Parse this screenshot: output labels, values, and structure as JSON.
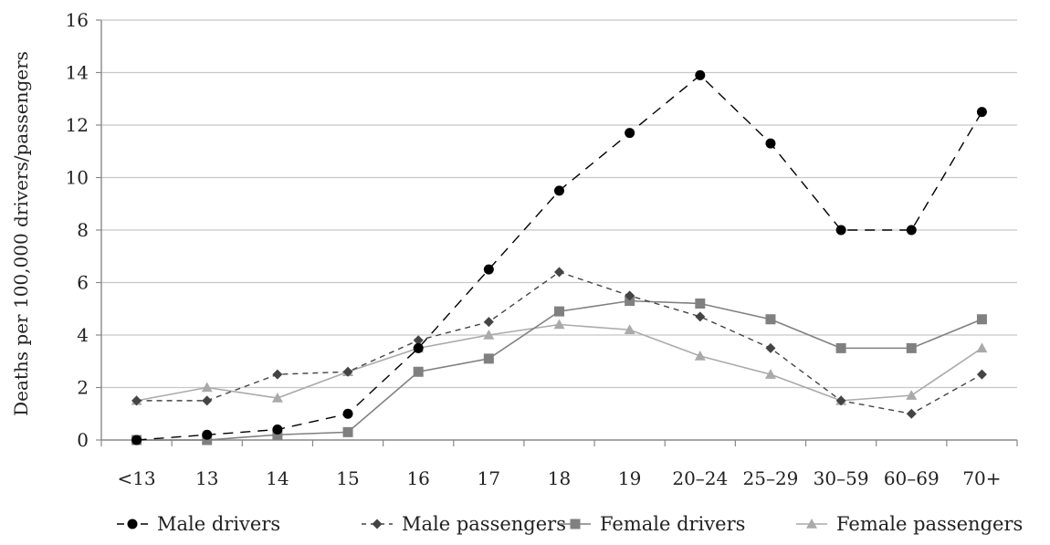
{
  "chart_data": {
    "type": "line",
    "title": "",
    "xlabel": "",
    "ylabel": "Deaths per 100,000 drivers/passengers",
    "ylim": [
      0,
      16
    ],
    "yticks": [
      "0",
      "2",
      "4",
      "6",
      "8",
      "10",
      "12",
      "14",
      "16"
    ],
    "categories": [
      "<13",
      "13",
      "14",
      "15",
      "16",
      "17",
      "18",
      "19",
      "20–24",
      "25–29",
      "30–59",
      "60–69",
      "70+"
    ],
    "grid": "horizontal",
    "legend_position": "bottom",
    "series": [
      {
        "name": "Male drivers",
        "marker": "circle",
        "line": "long-dash",
        "color": "#000000",
        "values": [
          0.0,
          0.2,
          0.4,
          1.0,
          3.5,
          6.5,
          9.5,
          11.7,
          13.9,
          11.3,
          8.0,
          8.0,
          12.5
        ]
      },
      {
        "name": "Male passengers",
        "marker": "diamond",
        "line": "short-dash",
        "color": "#444444",
        "values": [
          1.5,
          1.5,
          2.5,
          2.6,
          3.8,
          4.5,
          6.4,
          5.5,
          4.7,
          3.5,
          1.5,
          1.0,
          2.5
        ]
      },
      {
        "name": "Female drivers",
        "marker": "square",
        "line": "solid",
        "color": "#808080",
        "values": [
          0.0,
          0.0,
          0.2,
          0.3,
          2.6,
          3.1,
          4.9,
          5.3,
          5.2,
          4.6,
          3.5,
          3.5,
          4.6
        ]
      },
      {
        "name": "Female passengers",
        "marker": "triangle",
        "line": "solid",
        "color": "#aaaaaa",
        "values": [
          1.5,
          2.0,
          1.6,
          2.6,
          3.5,
          4.0,
          4.4,
          4.2,
          3.2,
          2.5,
          1.5,
          1.7,
          3.5
        ]
      }
    ]
  }
}
